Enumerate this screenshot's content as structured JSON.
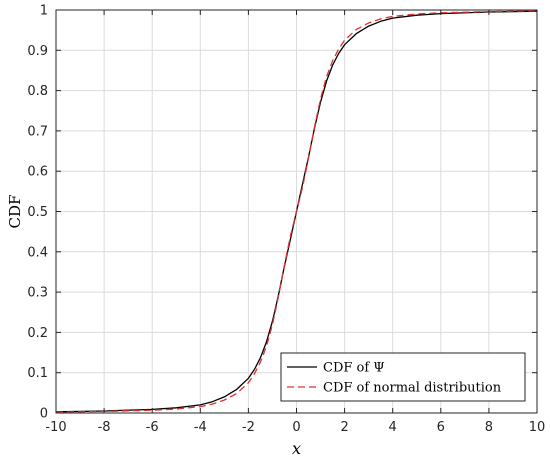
{
  "chart_data": {
    "type": "line",
    "xlabel": "x",
    "ylabel": "CDF",
    "xlim": [
      -10,
      10
    ],
    "ylim": [
      0,
      1
    ],
    "xticks": [
      -10,
      -8,
      -6,
      -4,
      -2,
      0,
      2,
      4,
      6,
      8,
      10
    ],
    "yticks": [
      0,
      0.1,
      0.2,
      0.3,
      0.4,
      0.5,
      0.6,
      0.7,
      0.8,
      0.9,
      1
    ],
    "grid": true,
    "legend_position": "bottom-right",
    "series": [
      {
        "name": "CDF of Ψ",
        "color": "#000000",
        "style": "solid",
        "x": [
          -10,
          -8,
          -6,
          -5,
          -4,
          -3.5,
          -3,
          -2.5,
          -2,
          -1.75,
          -1.5,
          -1.25,
          -1,
          -0.75,
          -0.5,
          -0.25,
          0,
          0.25,
          0.5,
          0.75,
          1,
          1.25,
          1.5,
          1.75,
          2,
          2.5,
          3,
          3.5,
          4,
          5,
          6,
          8,
          10
        ],
        "y": [
          0.003,
          0.005,
          0.009,
          0.013,
          0.02,
          0.028,
          0.04,
          0.058,
          0.086,
          0.108,
          0.137,
          0.176,
          0.228,
          0.293,
          0.365,
          0.432,
          0.5,
          0.568,
          0.635,
          0.707,
          0.772,
          0.824,
          0.863,
          0.892,
          0.914,
          0.942,
          0.96,
          0.972,
          0.98,
          0.987,
          0.991,
          0.995,
          0.997
        ]
      },
      {
        "name": "CDF of normal distribution",
        "color": "#e03030",
        "style": "dashed",
        "x": [
          -10,
          -8,
          -6,
          -5,
          -4,
          -3.5,
          -3,
          -2.5,
          -2,
          -1.75,
          -1.5,
          -1.25,
          -1,
          -0.75,
          -0.5,
          -0.25,
          0,
          0.25,
          0.5,
          0.75,
          1,
          1.25,
          1.5,
          1.75,
          2,
          2.5,
          3,
          3.5,
          4,
          5,
          6,
          8,
          10
        ],
        "y": [
          0.002,
          0.004,
          0.007,
          0.01,
          0.016,
          0.022,
          0.032,
          0.048,
          0.075,
          0.097,
          0.126,
          0.165,
          0.22,
          0.29,
          0.368,
          0.44,
          0.5,
          0.56,
          0.632,
          0.71,
          0.78,
          0.835,
          0.874,
          0.903,
          0.925,
          0.952,
          0.968,
          0.978,
          0.984,
          0.99,
          0.993,
          0.996,
          0.998
        ]
      }
    ]
  }
}
